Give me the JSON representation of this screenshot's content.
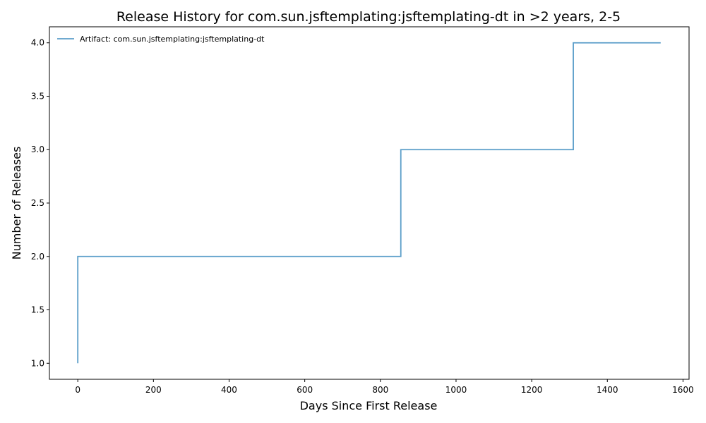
{
  "chart_data": {
    "type": "line",
    "step": "post",
    "title": "Release History for com.sun.jsftemplating:jsftemplating-dt in >2 years, 2-5",
    "xlabel": "Days Since First Release",
    "ylabel": "Number of Releases",
    "xlim": [
      -75,
      1616
    ],
    "ylim": [
      0.85,
      4.15
    ],
    "xticks": [
      0,
      200,
      400,
      600,
      800,
      1000,
      1200,
      1400,
      1600
    ],
    "yticks": [
      1.0,
      1.5,
      2.0,
      2.5,
      3.0,
      3.5,
      4.0
    ],
    "xtick_labels": [
      "0",
      "200",
      "400",
      "600",
      "800",
      "1000",
      "1200",
      "1400",
      "1600"
    ],
    "ytick_labels": [
      "1.0",
      "1.5",
      "2.0",
      "2.5",
      "3.0",
      "3.5",
      "4.0"
    ],
    "grid": false,
    "legend_position": "top-left",
    "series": [
      {
        "name": "Artifact: com.sun.jsftemplating:jsftemplating-dt",
        "color": "#5b9ec9",
        "x": [
          0,
          0,
          854,
          1310,
          1541
        ],
        "y": [
          1,
          2,
          3,
          4,
          4
        ]
      }
    ]
  }
}
